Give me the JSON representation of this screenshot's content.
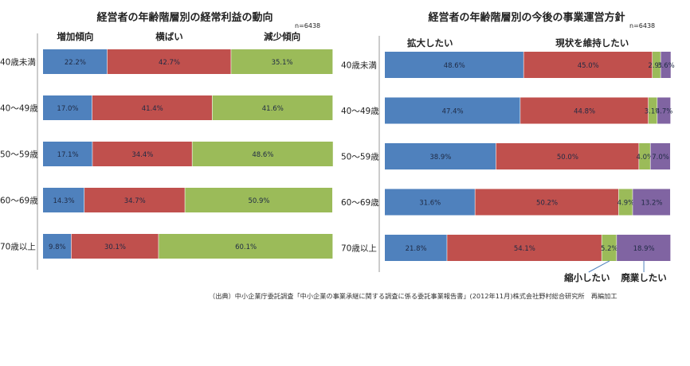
{
  "source_note": "（出典）中小企業庁委託調査「中小企業の事業承継に関する調査に係る委託事業報告書」(2012年11月)株式会社野村総合研究所　再編加工",
  "colors": {
    "series1": "#4F81BD",
    "series2": "#C0504D",
    "series3": "#9BBB59",
    "series4": "#8064A2",
    "label_text": "#1f2a44",
    "axis": "#9a9a9a",
    "callout_line": "#4F81BD"
  },
  "chart_data": [
    {
      "type": "bar",
      "orientation": "horizontal",
      "stacked": "percent",
      "title": "経営者の年齢階層別の経常利益の動向",
      "sample_size": "n=6438",
      "categories": [
        "40歳未満",
        "40～49歳",
        "50～59歳",
        "60～69歳",
        "70歳以上"
      ],
      "series": [
        {
          "name": "増加傾向",
          "values": [
            22.2,
            17.0,
            17.1,
            14.3,
            9.8
          ]
        },
        {
          "name": "横ばい",
          "values": [
            42.7,
            41.4,
            34.4,
            34.7,
            30.1
          ]
        },
        {
          "name": "減少傾向",
          "values": [
            35.1,
            41.6,
            48.6,
            50.9,
            60.1
          ]
        }
      ],
      "value_format": "%",
      "xlim": [
        0,
        100
      ],
      "legend": "top, labels placed above each segment column"
    },
    {
      "type": "bar",
      "orientation": "horizontal",
      "stacked": "percent",
      "title": "経営者の年齢階層別の今後の事業運営方針",
      "sample_size": "n=6438",
      "categories": [
        "40歳未満",
        "40～49歳",
        "50～59歳",
        "60～69歳",
        "70歳以上"
      ],
      "series": [
        {
          "name": "拡大したい",
          "values": [
            48.6,
            47.4,
            38.9,
            31.6,
            21.8
          ]
        },
        {
          "name": "現状を維持したい",
          "values": [
            45.0,
            44.8,
            50.0,
            50.2,
            54.1
          ]
        },
        {
          "name": "縮小したい",
          "values": [
            2.9,
            3.1,
            4.0,
            4.9,
            5.2
          ]
        },
        {
          "name": "廃業したい",
          "values": [
            3.6,
            4.7,
            7.0,
            13.2,
            18.9
          ]
        }
      ],
      "value_format": "%",
      "xlim": [
        0,
        100
      ],
      "legend": "top labels for first two series, bottom callouts for last two series"
    }
  ]
}
